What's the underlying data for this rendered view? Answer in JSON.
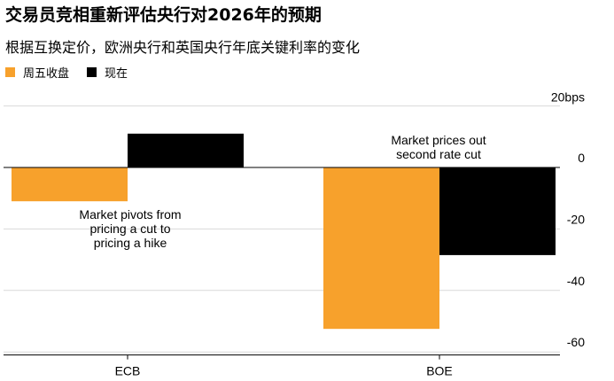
{
  "title": "交易员竞相重新评估央行对2026年的预期",
  "subtitle": "根据互换定价，欧洲央行和英国央行年底关键利率的变化",
  "colors": {
    "friday": "#f7a12c",
    "now": "#000000",
    "grid": "#d9d9d9",
    "axis": "#000000"
  },
  "chart_data": {
    "type": "bar",
    "title": "交易员竞相重新评估央行对2026年的预期",
    "subtitle": "根据互换定价，欧洲央行和英国央行年底关键利率的变化",
    "categories": [
      "ECB",
      "BOE"
    ],
    "series": [
      {
        "name": "周五收盘",
        "values": [
          -11,
          -52.5
        ]
      },
      {
        "name": "现在",
        "values": [
          11,
          -28.5
        ]
      }
    ],
    "ylim": [
      -61,
      22
    ],
    "y_ticks": [
      20,
      0,
      -20,
      -40,
      -60
    ],
    "y_tick_labels": [
      "20bps",
      "0",
      "-20",
      "-40",
      "-60"
    ],
    "xlabel": "",
    "ylabel": "",
    "grid": true,
    "legend_position": "top-left",
    "annotations": [
      {
        "lines": [
          "Market pivots from",
          "pricing a cut to",
          "pricing a hike"
        ]
      },
      {
        "lines": [
          "Market prices out",
          "second rate cut"
        ]
      }
    ]
  }
}
